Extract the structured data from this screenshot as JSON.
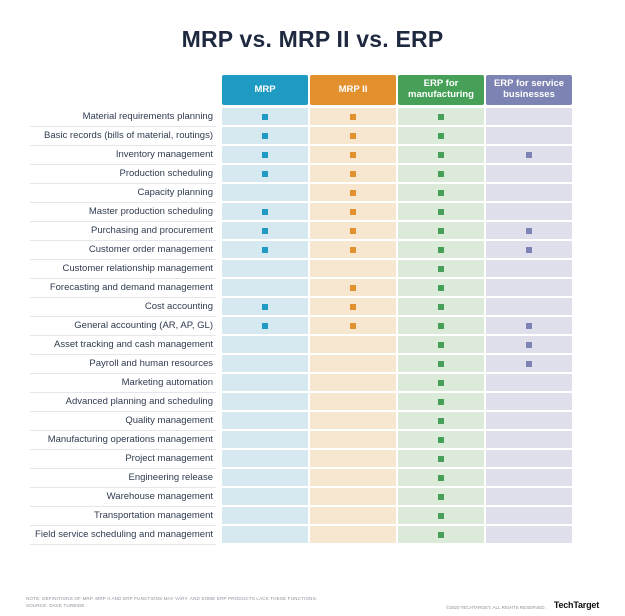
{
  "title": "MRP vs. MRP II vs. ERP",
  "colors": {
    "title_color": "#1e2940",
    "mrp": "#1f9ac2",
    "mrp2": "#e3912f",
    "erpmfg": "#46a057",
    "erpsvc": "#7d83b2",
    "mrp_tint": "#d6e9f1",
    "mrp2_tint": "#f7e7d0",
    "erpmfg_tint": "#dcead9",
    "erpsvc_tint": "#dfe0ec"
  },
  "columns": [
    {
      "id": "mrp",
      "label": "MRP"
    },
    {
      "id": "mrp2",
      "label": "MRP II"
    },
    {
      "id": "erpmfg",
      "label": "ERP for manufacturing"
    },
    {
      "id": "erpsvc",
      "label": "ERP for service businesses"
    }
  ],
  "rows": [
    {
      "label": "Material requirements planning",
      "marks": [
        1,
        1,
        1,
        0
      ]
    },
    {
      "label": "Basic records (bills of material, routings)",
      "marks": [
        1,
        1,
        1,
        0
      ]
    },
    {
      "label": "Inventory management",
      "marks": [
        1,
        1,
        1,
        1
      ]
    },
    {
      "label": "Production scheduling",
      "marks": [
        1,
        1,
        1,
        0
      ]
    },
    {
      "label": "Capacity planning",
      "marks": [
        0,
        1,
        1,
        0
      ]
    },
    {
      "label": "Master production scheduling",
      "marks": [
        1,
        1,
        1,
        0
      ]
    },
    {
      "label": "Purchasing and procurement",
      "marks": [
        1,
        1,
        1,
        1
      ]
    },
    {
      "label": "Customer order management",
      "marks": [
        1,
        1,
        1,
        1
      ]
    },
    {
      "label": "Customer relationship management",
      "marks": [
        0,
        0,
        1,
        0
      ]
    },
    {
      "label": "Forecasting and demand management",
      "marks": [
        0,
        1,
        1,
        0
      ]
    },
    {
      "label": "Cost accounting",
      "marks": [
        1,
        1,
        1,
        0
      ]
    },
    {
      "label": "General accounting (AR, AP, GL)",
      "marks": [
        1,
        1,
        1,
        1
      ]
    },
    {
      "label": "Asset tracking and cash management",
      "marks": [
        0,
        0,
        1,
        1
      ]
    },
    {
      "label": "Payroll and human resources",
      "marks": [
        0,
        0,
        1,
        1
      ]
    },
    {
      "label": "Marketing automation",
      "marks": [
        0,
        0,
        1,
        0
      ]
    },
    {
      "label": "Advanced planning and scheduling",
      "marks": [
        0,
        0,
        1,
        0
      ]
    },
    {
      "label": "Quality management",
      "marks": [
        0,
        0,
        1,
        0
      ]
    },
    {
      "label": "Manufacturing operations management",
      "marks": [
        0,
        0,
        1,
        0
      ]
    },
    {
      "label": "Project management",
      "marks": [
        0,
        0,
        1,
        0
      ]
    },
    {
      "label": "Engineering release",
      "marks": [
        0,
        0,
        1,
        0
      ]
    },
    {
      "label": "Warehouse management",
      "marks": [
        0,
        0,
        1,
        0
      ]
    },
    {
      "label": "Transportation management",
      "marks": [
        0,
        0,
        1,
        0
      ]
    },
    {
      "label": "Field service scheduling and management",
      "marks": [
        0,
        0,
        1,
        0
      ]
    }
  ],
  "footer": {
    "note_line1": "NOTE: DEFINITIONS OF MRP, MRP II AND ERP FUNCTIONS MAY VARY, AND SOME ERP PRODUCTS LACK THESE FUNCTIONS.",
    "note_line2": "SOURCE: DAVE TURBIDE",
    "copyright": "©2020 TECHTARGET, ALL RIGHTS RESERVED.",
    "brand": "TechTarget"
  },
  "chart_data": {
    "type": "table",
    "title": "MRP vs. MRP II vs. ERP",
    "columns": [
      "MRP",
      "MRP II",
      "ERP for manufacturing",
      "ERP for service businesses"
    ],
    "features": [
      "Material requirements planning",
      "Basic records (bills of material, routings)",
      "Inventory management",
      "Production scheduling",
      "Capacity planning",
      "Master production scheduling",
      "Purchasing and procurement",
      "Customer order management",
      "Customer relationship management",
      "Forecasting and demand management",
      "Cost accounting",
      "General accounting (AR, AP, GL)",
      "Asset tracking and cash management",
      "Payroll and human resources",
      "Marketing automation",
      "Advanced planning and scheduling",
      "Quality management",
      "Manufacturing operations management",
      "Project management",
      "Engineering release",
      "Warehouse management",
      "Transportation management",
      "Field service scheduling and management"
    ],
    "matrix": [
      [
        1,
        1,
        1,
        0
      ],
      [
        1,
        1,
        1,
        0
      ],
      [
        1,
        1,
        1,
        1
      ],
      [
        1,
        1,
        1,
        0
      ],
      [
        0,
        1,
        1,
        0
      ],
      [
        1,
        1,
        1,
        0
      ],
      [
        1,
        1,
        1,
        1
      ],
      [
        1,
        1,
        1,
        1
      ],
      [
        0,
        0,
        1,
        0
      ],
      [
        0,
        1,
        1,
        0
      ],
      [
        1,
        1,
        1,
        0
      ],
      [
        1,
        1,
        1,
        1
      ],
      [
        0,
        0,
        1,
        1
      ],
      [
        0,
        0,
        1,
        1
      ],
      [
        0,
        0,
        1,
        0
      ],
      [
        0,
        0,
        1,
        0
      ],
      [
        0,
        0,
        1,
        0
      ],
      [
        0,
        0,
        1,
        0
      ],
      [
        0,
        0,
        1,
        0
      ],
      [
        0,
        0,
        1,
        0
      ],
      [
        0,
        0,
        1,
        0
      ],
      [
        0,
        0,
        1,
        0
      ],
      [
        0,
        0,
        1,
        0
      ]
    ],
    "legend_position": "top",
    "grid": false
  }
}
